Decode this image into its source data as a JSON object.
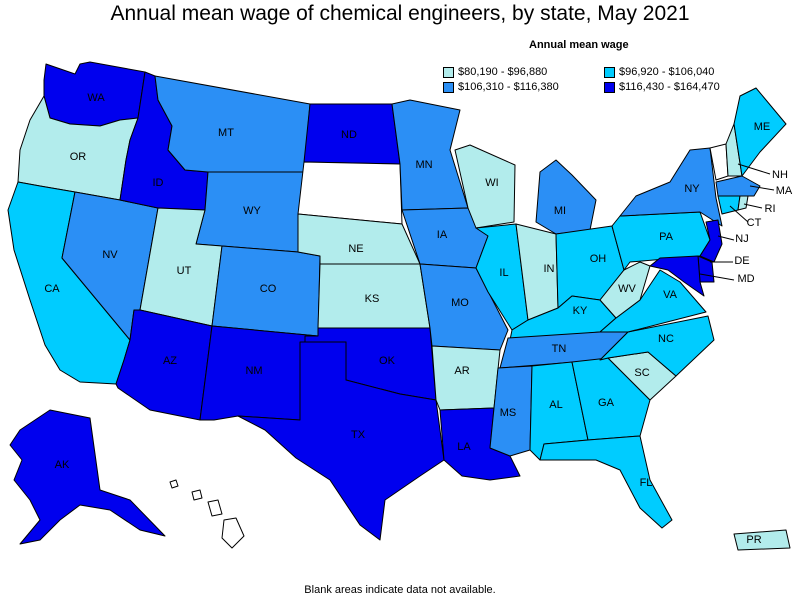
{
  "title": "Annual mean wage of chemical engineers, by state, May 2021",
  "legend": {
    "title": "Annual mean wage",
    "items": [
      {
        "label": "$80,190 - $96,880",
        "color": "#b2ecec"
      },
      {
        "label": "$96,920 - $106,040",
        "color": "#00ccff"
      },
      {
        "label": "$106,310 - $116,380",
        "color": "#2b8ff5"
      },
      {
        "label": "$116,430 - $164,470",
        "color": "#0000ee"
      }
    ]
  },
  "footnote": "Blank areas indicate data not available.",
  "colors": {
    "c1": "#b2ecec",
    "c2": "#00ccff",
    "c3": "#2b8ff5",
    "c4": "#0000ee",
    "blank": "#ffffff"
  },
  "states": [
    {
      "abbr": "WA",
      "class": 4
    },
    {
      "abbr": "OR",
      "class": 1
    },
    {
      "abbr": "CA",
      "class": 2
    },
    {
      "abbr": "NV",
      "class": 3
    },
    {
      "abbr": "ID",
      "class": 4
    },
    {
      "abbr": "MT",
      "class": 3
    },
    {
      "abbr": "WY",
      "class": 3
    },
    {
      "abbr": "UT",
      "class": 1
    },
    {
      "abbr": "AZ",
      "class": 4
    },
    {
      "abbr": "CO",
      "class": 3
    },
    {
      "abbr": "NM",
      "class": 4
    },
    {
      "abbr": "ND",
      "class": 4
    },
    {
      "abbr": "SD",
      "class": 0
    },
    {
      "abbr": "NE",
      "class": 1
    },
    {
      "abbr": "KS",
      "class": 1
    },
    {
      "abbr": "OK",
      "class": 4
    },
    {
      "abbr": "TX",
      "class": 4
    },
    {
      "abbr": "MN",
      "class": 3
    },
    {
      "abbr": "IA",
      "class": 3
    },
    {
      "abbr": "MO",
      "class": 3
    },
    {
      "abbr": "AR",
      "class": 1
    },
    {
      "abbr": "LA",
      "class": 4
    },
    {
      "abbr": "WI",
      "class": 1
    },
    {
      "abbr": "IL",
      "class": 2
    },
    {
      "abbr": "MI",
      "class": 3
    },
    {
      "abbr": "IN",
      "class": 1
    },
    {
      "abbr": "OH",
      "class": 2
    },
    {
      "abbr": "KY",
      "class": 2
    },
    {
      "abbr": "TN",
      "class": 3
    },
    {
      "abbr": "MS",
      "class": 3
    },
    {
      "abbr": "AL",
      "class": 2
    },
    {
      "abbr": "GA",
      "class": 2
    },
    {
      "abbr": "FL",
      "class": 2
    },
    {
      "abbr": "SC",
      "class": 1
    },
    {
      "abbr": "NC",
      "class": 2
    },
    {
      "abbr": "VA",
      "class": 2
    },
    {
      "abbr": "WV",
      "class": 1
    },
    {
      "abbr": "PA",
      "class": 2
    },
    {
      "abbr": "NY",
      "class": 3
    },
    {
      "abbr": "VT",
      "class": 0
    },
    {
      "abbr": "NH",
      "class": 1
    },
    {
      "abbr": "ME",
      "class": 2
    },
    {
      "abbr": "MA",
      "class": 3
    },
    {
      "abbr": "RI",
      "class": 1
    },
    {
      "abbr": "CT",
      "class": 2
    },
    {
      "abbr": "NJ",
      "class": 4
    },
    {
      "abbr": "DE",
      "class": 4
    },
    {
      "abbr": "MD",
      "class": 4
    },
    {
      "abbr": "AK",
      "class": 4
    },
    {
      "abbr": "HI",
      "class": 0
    },
    {
      "abbr": "PR",
      "class": 1
    }
  ]
}
